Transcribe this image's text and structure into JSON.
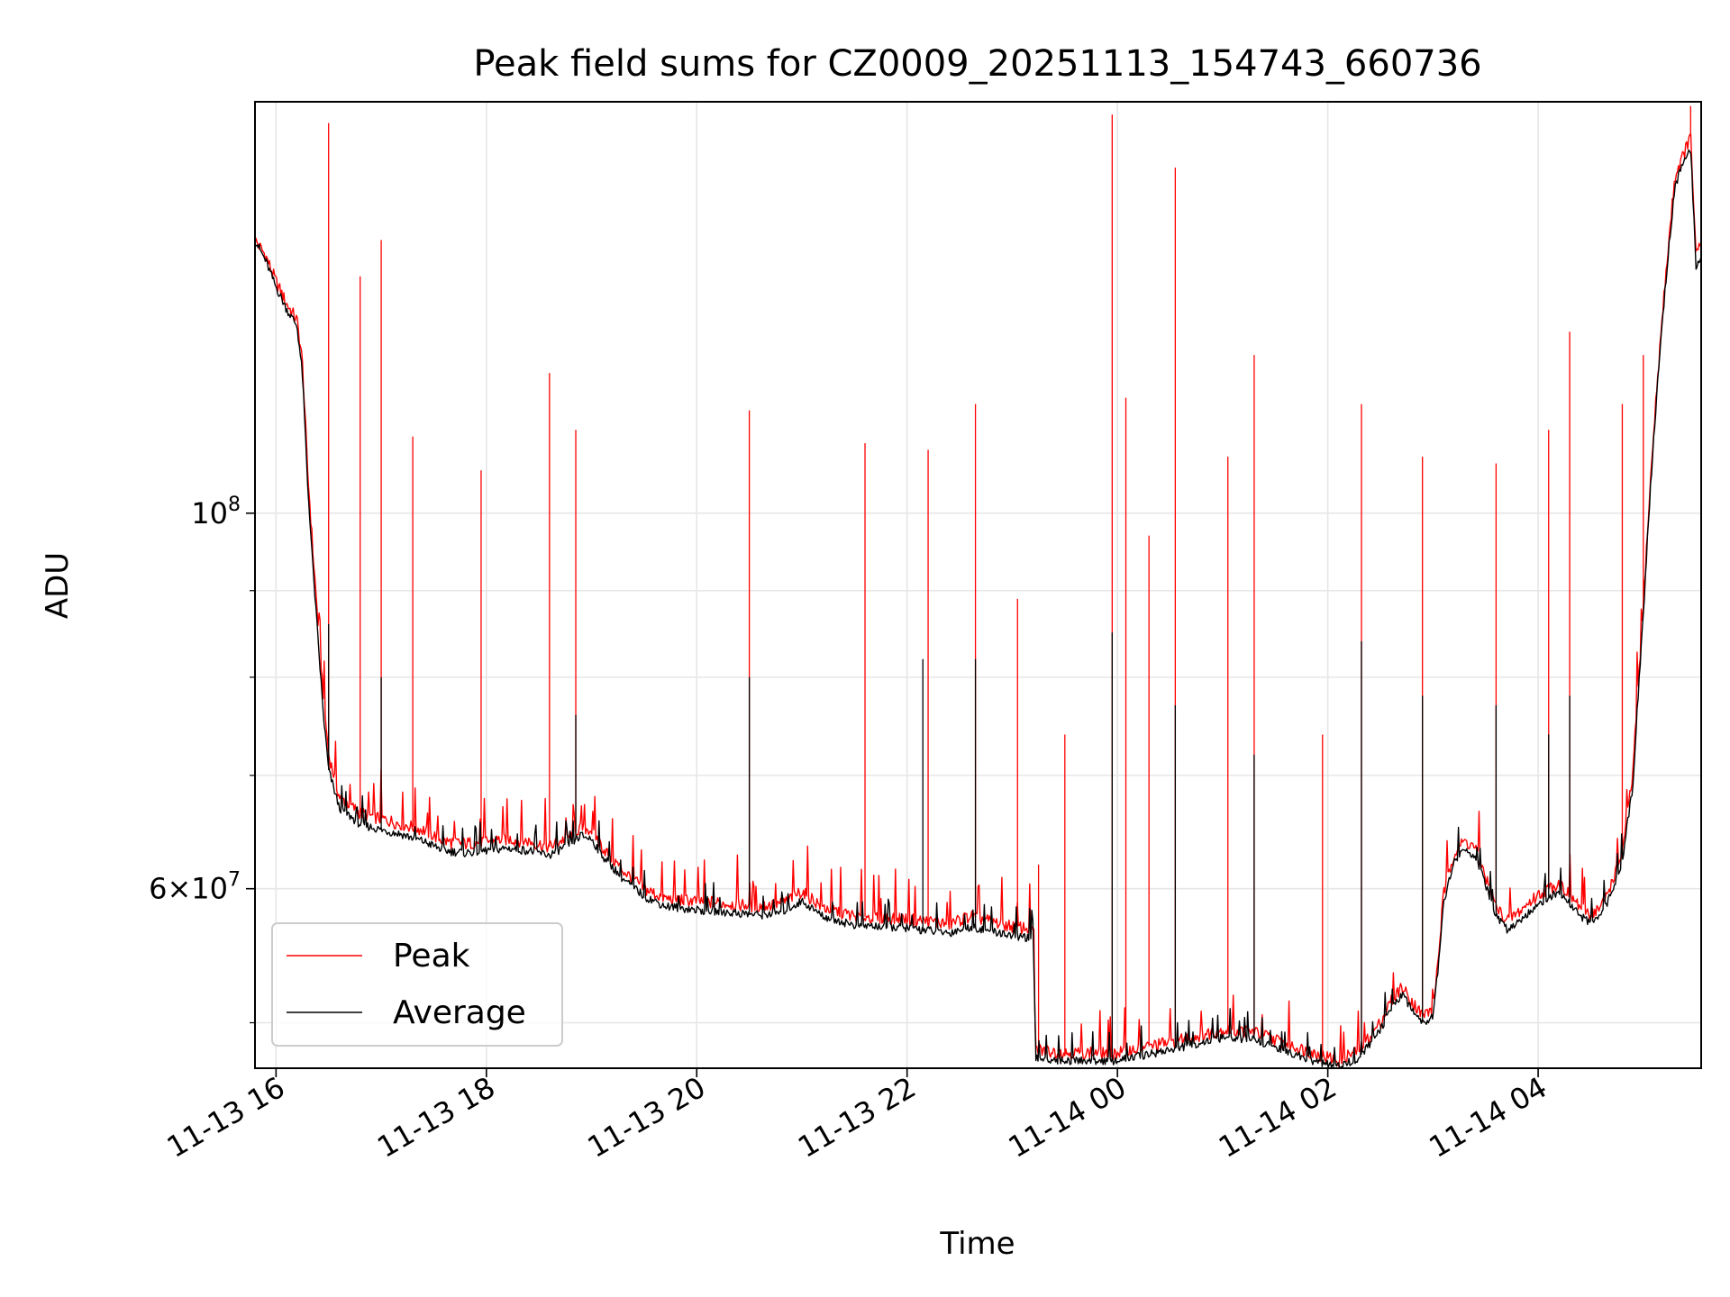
{
  "chart_data": {
    "type": "line",
    "title": "Peak field sums for CZ0009_20251113_154743_660736",
    "xlabel": "Time",
    "ylabel": "ADU",
    "yscale": "log",
    "ylim": [
      47000000,
      175000000
    ],
    "xlim_hours": [
      -0.2,
      13.55
    ],
    "grid": true,
    "legend_position": "lower-left",
    "x_ticks": [
      {
        "hours": 0,
        "label": "11-13 16"
      },
      {
        "hours": 2,
        "label": "11-13 18"
      },
      {
        "hours": 4,
        "label": "11-13 20"
      },
      {
        "hours": 6,
        "label": "11-13 22"
      },
      {
        "hours": 8,
        "label": "11-14 00"
      },
      {
        "hours": 10,
        "label": "11-14 02"
      },
      {
        "hours": 12,
        "label": "11-14 04"
      }
    ],
    "y_major_ticks": [
      {
        "value": 100000000,
        "base": "10",
        "exp": "8"
      },
      {
        "value": 60000000,
        "coef": "6",
        "times": "×",
        "base": "10",
        "exp": "7"
      }
    ],
    "y_minor_ticks": [
      50000000,
      70000000,
      80000000,
      90000000
    ],
    "x_unit_note": "hours after 2025-11-13 16:00",
    "series": [
      {
        "name": "Peak",
        "color": "#ff0000",
        "baseline": [
          [
            -0.2,
            145000000
          ],
          [
            -0.1,
            142000000
          ],
          [
            0.0,
            137000000
          ],
          [
            0.1,
            133000000
          ],
          [
            0.2,
            130000000
          ],
          [
            0.25,
            123000000
          ],
          [
            0.3,
            106000000
          ],
          [
            0.35,
            95000000
          ],
          [
            0.4,
            86000000
          ],
          [
            0.45,
            78000000
          ],
          [
            0.5,
            72000000
          ],
          [
            0.6,
            68000000
          ],
          [
            0.8,
            66500000
          ],
          [
            1.0,
            66000000
          ],
          [
            1.2,
            65500000
          ],
          [
            1.4,
            65000000
          ],
          [
            1.6,
            64000000
          ],
          [
            1.8,
            63800000
          ],
          [
            2.0,
            64000000
          ],
          [
            2.2,
            64200000
          ],
          [
            2.4,
            64000000
          ],
          [
            2.6,
            63500000
          ],
          [
            2.8,
            64500000
          ],
          [
            2.9,
            65200000
          ],
          [
            3.0,
            65000000
          ],
          [
            3.1,
            63500000
          ],
          [
            3.3,
            61500000
          ],
          [
            3.5,
            60000000
          ],
          [
            3.7,
            59200000
          ],
          [
            4.0,
            59000000
          ],
          [
            4.3,
            58800000
          ],
          [
            4.6,
            58600000
          ],
          [
            4.8,
            58800000
          ],
          [
            5.0,
            59800000
          ],
          [
            5.2,
            58500000
          ],
          [
            5.5,
            57800000
          ],
          [
            6.0,
            57600000
          ],
          [
            6.4,
            57200000
          ],
          [
            6.6,
            57800000
          ],
          [
            7.0,
            57000000
          ],
          [
            7.2,
            56800000
          ],
          [
            7.22,
            48200000
          ],
          [
            7.5,
            48000000
          ],
          [
            8.0,
            48000000
          ],
          [
            8.5,
            48700000
          ],
          [
            9.0,
            49500000
          ],
          [
            9.3,
            49400000
          ],
          [
            9.6,
            48600000
          ],
          [
            9.9,
            47900000
          ],
          [
            10.1,
            47500000
          ],
          [
            10.3,
            48200000
          ],
          [
            10.5,
            50000000
          ],
          [
            10.6,
            51500000
          ],
          [
            10.7,
            52500000
          ],
          [
            10.8,
            51500000
          ],
          [
            10.9,
            50500000
          ],
          [
            11.0,
            51000000
          ],
          [
            11.05,
            54500000
          ],
          [
            11.1,
            59500000
          ],
          [
            11.2,
            63000000
          ],
          [
            11.3,
            64000000
          ],
          [
            11.4,
            63500000
          ],
          [
            11.5,
            61000000
          ],
          [
            11.6,
            58500000
          ],
          [
            11.7,
            57500000
          ],
          [
            11.8,
            58000000
          ],
          [
            12.0,
            59500000
          ],
          [
            12.2,
            60500000
          ],
          [
            12.3,
            59500000
          ],
          [
            12.4,
            58500000
          ],
          [
            12.5,
            58000000
          ],
          [
            12.6,
            58500000
          ],
          [
            12.7,
            60500000
          ],
          [
            12.8,
            63000000
          ],
          [
            12.9,
            70000000
          ],
          [
            13.0,
            88000000
          ],
          [
            13.1,
            112000000
          ],
          [
            13.2,
            135000000
          ],
          [
            13.3,
            158000000
          ],
          [
            13.4,
            164000000
          ],
          [
            13.45,
            167000000
          ],
          [
            13.5,
            142000000
          ],
          [
            13.55,
            144000000
          ]
        ],
        "spikes": [
          [
            0.5,
            170000000
          ],
          [
            0.8,
            138000000
          ],
          [
            1.0,
            145000000
          ],
          [
            1.3,
            111000000
          ],
          [
            1.95,
            106000000
          ],
          [
            2.6,
            121000000
          ],
          [
            2.85,
            112000000
          ],
          [
            4.5,
            115000000
          ],
          [
            5.6,
            110000000
          ],
          [
            6.2,
            109000000
          ],
          [
            6.65,
            116000000
          ],
          [
            7.05,
            89000000
          ],
          [
            7.25,
            62000000
          ],
          [
            7.5,
            74000000
          ],
          [
            7.95,
            172000000
          ],
          [
            8.08,
            117000000
          ],
          [
            8.3,
            97000000
          ],
          [
            8.55,
            160000000
          ],
          [
            9.05,
            108000000
          ],
          [
            9.3,
            124000000
          ],
          [
            9.95,
            74000000
          ],
          [
            10.32,
            116000000
          ],
          [
            10.9,
            108000000
          ],
          [
            11.6,
            107000000
          ],
          [
            12.1,
            112000000
          ],
          [
            12.3,
            128000000
          ],
          [
            12.8,
            116000000
          ],
          [
            13.0,
            124000000
          ],
          [
            13.45,
            174000000
          ]
        ]
      },
      {
        "name": "Average",
        "color": "#000000",
        "baseline": [
          [
            -0.2,
            145000000
          ],
          [
            -0.1,
            141000000
          ],
          [
            0.0,
            136000000
          ],
          [
            0.1,
            132000000
          ],
          [
            0.2,
            129000000
          ],
          [
            0.25,
            121000000
          ],
          [
            0.3,
            104000000
          ],
          [
            0.35,
            93000000
          ],
          [
            0.4,
            84000000
          ],
          [
            0.45,
            76000000
          ],
          [
            0.5,
            70500000
          ],
          [
            0.6,
            67000000
          ],
          [
            0.8,
            65500000
          ],
          [
            1.0,
            65000000
          ],
          [
            1.2,
            64600000
          ],
          [
            1.4,
            64000000
          ],
          [
            1.6,
            63200000
          ],
          [
            1.8,
            63000000
          ],
          [
            2.0,
            63200000
          ],
          [
            2.2,
            63400000
          ],
          [
            2.4,
            63200000
          ],
          [
            2.6,
            62800000
          ],
          [
            2.8,
            63800000
          ],
          [
            2.9,
            64500000
          ],
          [
            3.0,
            64200000
          ],
          [
            3.1,
            62800000
          ],
          [
            3.3,
            60800000
          ],
          [
            3.5,
            59400000
          ],
          [
            3.7,
            58600000
          ],
          [
            4.0,
            58300000
          ],
          [
            4.3,
            58100000
          ],
          [
            4.6,
            57900000
          ],
          [
            4.8,
            58100000
          ],
          [
            5.0,
            59000000
          ],
          [
            5.2,
            57800000
          ],
          [
            5.5,
            57100000
          ],
          [
            6.0,
            56900000
          ],
          [
            6.4,
            56500000
          ],
          [
            6.6,
            57000000
          ],
          [
            7.0,
            56300000
          ],
          [
            7.2,
            56100000
          ],
          [
            7.22,
            47700000
          ],
          [
            7.5,
            47500000
          ],
          [
            8.0,
            47500000
          ],
          [
            8.5,
            48200000
          ],
          [
            9.0,
            49000000
          ],
          [
            9.3,
            48900000
          ],
          [
            9.6,
            48100000
          ],
          [
            9.9,
            47400000
          ],
          [
            10.1,
            47100000
          ],
          [
            10.3,
            47700000
          ],
          [
            10.5,
            49500000
          ],
          [
            10.6,
            51000000
          ],
          [
            10.7,
            52000000
          ],
          [
            10.8,
            51000000
          ],
          [
            10.9,
            50000000
          ],
          [
            11.0,
            50500000
          ],
          [
            11.05,
            54000000
          ],
          [
            11.1,
            58800000
          ],
          [
            11.2,
            62300000
          ],
          [
            11.3,
            63300000
          ],
          [
            11.4,
            62800000
          ],
          [
            11.5,
            60300000
          ],
          [
            11.6,
            57800000
          ],
          [
            11.7,
            56800000
          ],
          [
            11.8,
            57300000
          ],
          [
            12.0,
            58800000
          ],
          [
            12.2,
            59800000
          ],
          [
            12.3,
            58800000
          ],
          [
            12.4,
            57800000
          ],
          [
            12.5,
            57300000
          ],
          [
            12.6,
            57800000
          ],
          [
            12.7,
            59800000
          ],
          [
            12.8,
            62300000
          ],
          [
            12.9,
            69000000
          ],
          [
            13.0,
            87000000
          ],
          [
            13.1,
            111000000
          ],
          [
            13.2,
            134000000
          ],
          [
            13.3,
            156000000
          ],
          [
            13.4,
            162000000
          ],
          [
            13.45,
            164000000
          ],
          [
            13.5,
            140000000
          ],
          [
            13.55,
            142000000
          ]
        ],
        "spikes": [
          [
            0.5,
            86000000
          ],
          [
            1.0,
            80000000
          ],
          [
            2.85,
            76000000
          ],
          [
            4.5,
            80000000
          ],
          [
            6.15,
            82000000
          ],
          [
            6.65,
            82000000
          ],
          [
            7.95,
            85000000
          ],
          [
            8.55,
            77000000
          ],
          [
            9.3,
            72000000
          ],
          [
            10.32,
            84000000
          ],
          [
            10.9,
            78000000
          ],
          [
            11.6,
            77000000
          ],
          [
            12.1,
            74000000
          ],
          [
            12.3,
            78000000
          ]
        ]
      }
    ]
  }
}
